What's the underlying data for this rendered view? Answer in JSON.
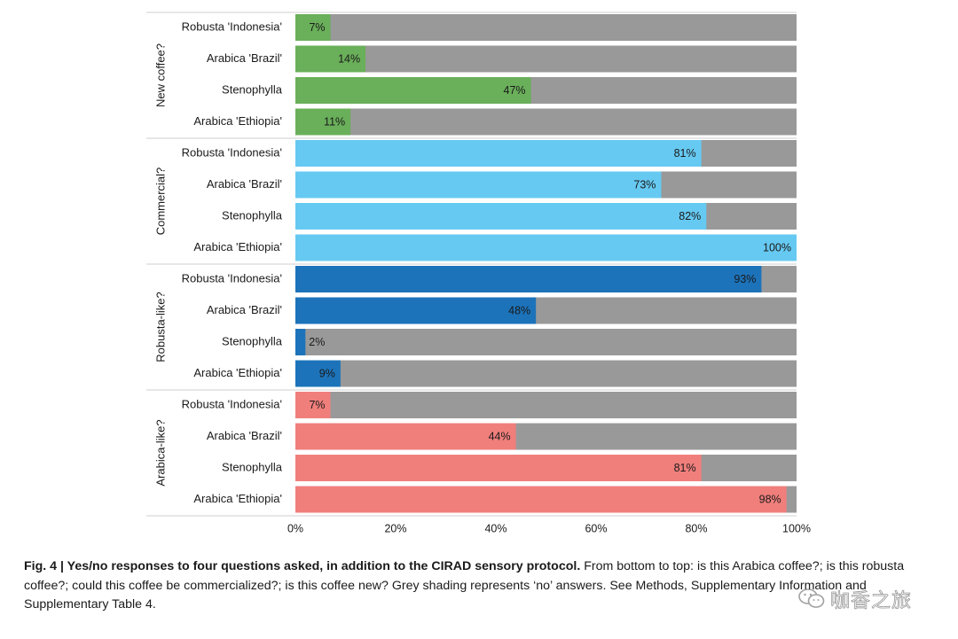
{
  "chart_data": {
    "type": "bar",
    "orientation": "horizontal",
    "stacked": true,
    "xlim": [
      0,
      100
    ],
    "xticks": [
      "0%",
      "20%",
      "40%",
      "60%",
      "80%",
      "100%"
    ],
    "no_color": "#999999",
    "categories": [
      "Robusta 'Indonesia'",
      "Arabica 'Brazil'",
      "Stenophylla",
      "Arabica 'Ethiopia'"
    ],
    "groups": [
      {
        "name": "New coffee?",
        "color": "#6aaf5a",
        "values": [
          7,
          14,
          47,
          11
        ],
        "labels": [
          "7%",
          "14%",
          "47%",
          "11%"
        ]
      },
      {
        "name": "Commercial?",
        "color": "#66c9f2",
        "values": [
          81,
          73,
          82,
          100
        ],
        "labels": [
          "81%",
          "73%",
          "82%",
          "100%"
        ]
      },
      {
        "name": "Robusta-like?",
        "color": "#1c73ba",
        "values": [
          93,
          48,
          2,
          9
        ],
        "labels": [
          "93%",
          "48%",
          "2%",
          "9%"
        ]
      },
      {
        "name": "Arabica-like?",
        "color": "#f07f7c",
        "values": [
          7,
          44,
          81,
          98
        ],
        "labels": [
          "7%",
          "44%",
          "81%",
          "98%"
        ]
      }
    ]
  },
  "caption": {
    "label": "Fig. 4 | Yes/no responses to four questions asked, in addition to the CIRAD sensory protocol.",
    "body": " From bottom to top: is this Arabica coffee?; is this robusta coffee?; could this coffee be commercialized?; is this coffee new? Grey shading represents ‘no’ answers. See Methods, Supplementary Information and Supplementary Table 4."
  },
  "watermark": {
    "text": "咖香之旅",
    "icon": "wechat-icon"
  }
}
